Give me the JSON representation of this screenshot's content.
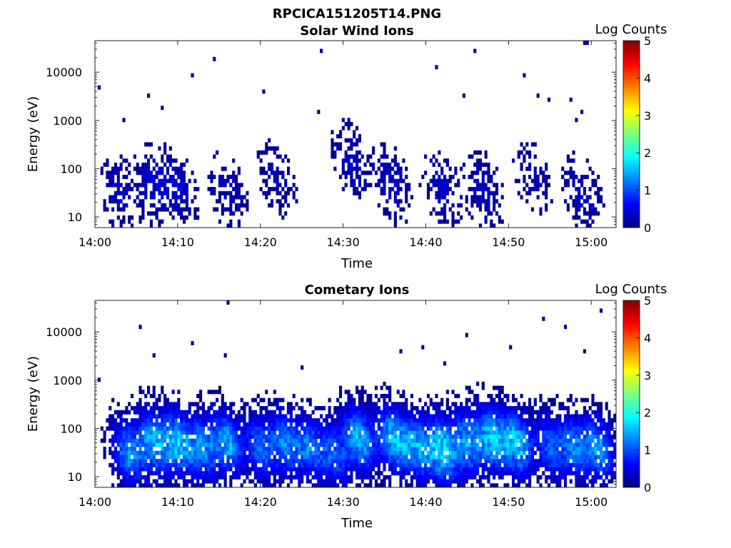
{
  "figure_title": "RPCICA151205T14.PNG",
  "colormap": [
    "#00007f",
    "#0000ff",
    "#007fff",
    "#00ffff",
    "#7fff7f",
    "#ffff00",
    "#ff7f00",
    "#ff0000",
    "#7f0000"
  ],
  "chart_data": [
    {
      "type": "heatmap",
      "title": "Solar Wind Ions",
      "xlabel": "Time",
      "ylabel": "Energy (eV)",
      "y_scale": "log",
      "ylim": [
        6,
        45000
      ],
      "xlim": [
        "14:00",
        "15:03"
      ],
      "x_ticks": [
        "14:00",
        "14:10",
        "14:20",
        "14:30",
        "14:40",
        "14:50",
        "15:00"
      ],
      "y_ticks": [
        "10",
        "100",
        "1000",
        "10000"
      ],
      "colorbar": {
        "label": "Log Counts",
        "range": [
          0,
          5
        ],
        "ticks": [
          "0",
          "1",
          "2",
          "3",
          "4",
          "5"
        ]
      },
      "bursts": [
        {
          "t": "14:03",
          "e": 30,
          "v": 0.35
        },
        {
          "t": "14:07",
          "e": 45,
          "v": 0.4
        },
        {
          "t": "14:10",
          "e": 40,
          "v": 0.4
        },
        {
          "t": "14:16",
          "e": 35,
          "v": 0.35
        },
        {
          "t": "14:22",
          "e": 60,
          "v": 0.3
        },
        {
          "t": "14:31",
          "e": 150,
          "v": 0.35
        },
        {
          "t": "14:36",
          "e": 45,
          "v": 0.4
        },
        {
          "t": "14:42",
          "e": 30,
          "v": 0.4
        },
        {
          "t": "14:47",
          "e": 35,
          "v": 0.35
        },
        {
          "t": "14:53",
          "e": 60,
          "v": 0.3
        },
        {
          "t": "14:59",
          "e": 30,
          "v": 0.35
        }
      ]
    },
    {
      "type": "heatmap",
      "title": "Cometary Ions",
      "xlabel": "Time",
      "ylabel": "Energy (eV)",
      "y_scale": "log",
      "ylim": [
        6,
        45000
      ],
      "xlim": [
        "14:00",
        "15:03"
      ],
      "x_ticks": [
        "14:00",
        "14:10",
        "14:20",
        "14:30",
        "14:40",
        "14:50",
        "15:00"
      ],
      "y_ticks": [
        "10",
        "100",
        "1000",
        "10000"
      ],
      "colorbar": {
        "label": "Log Counts",
        "range": [
          0,
          5
        ],
        "ticks": [
          "0",
          "1",
          "2",
          "3",
          "4",
          "5"
        ]
      },
      "bursts": [
        {
          "t": "14:04",
          "e": 30,
          "v": 1.3
        },
        {
          "t": "14:07",
          "e": 50,
          "v": 1.4
        },
        {
          "t": "14:10",
          "e": 50,
          "v": 1.5
        },
        {
          "t": "14:13",
          "e": 40,
          "v": 1.2
        },
        {
          "t": "14:16",
          "e": 50,
          "v": 1.4
        },
        {
          "t": "14:20",
          "e": 40,
          "v": 1.1
        },
        {
          "t": "14:23",
          "e": 50,
          "v": 1.2
        },
        {
          "t": "14:26",
          "e": 40,
          "v": 1.1
        },
        {
          "t": "14:29",
          "e": 30,
          "v": 1.0
        },
        {
          "t": "14:32",
          "e": 60,
          "v": 1.5
        },
        {
          "t": "14:36",
          "e": 60,
          "v": 1.5
        },
        {
          "t": "14:39",
          "e": 40,
          "v": 1.3
        },
        {
          "t": "14:42",
          "e": 35,
          "v": 1.7
        },
        {
          "t": "14:45",
          "e": 50,
          "v": 1.3
        },
        {
          "t": "14:48",
          "e": 60,
          "v": 1.5
        },
        {
          "t": "14:51",
          "e": 50,
          "v": 1.6
        },
        {
          "t": "14:55",
          "e": 40,
          "v": 1.0
        },
        {
          "t": "14:58",
          "e": 40,
          "v": 1.2
        },
        {
          "t": "15:01",
          "e": 40,
          "v": 1.3
        }
      ]
    }
  ]
}
